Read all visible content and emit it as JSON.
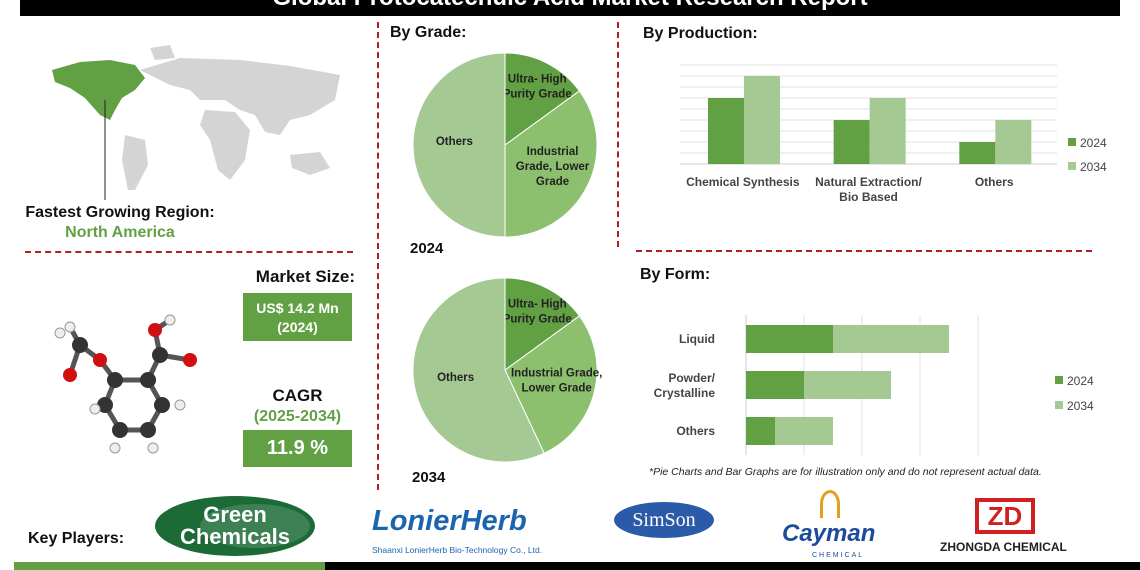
{
  "title": "Global Protocatechuic Acid Market Research Report",
  "region": {
    "label": "Fastest Growing Region:",
    "value": "North America"
  },
  "market_size": {
    "label": "Market Size:",
    "value": "US$ 14.2 Mn",
    "year": "(2024)"
  },
  "cagr": {
    "label": "CAGR",
    "period": "(2025-2034)",
    "value": "11.9 %"
  },
  "grade": {
    "heading": "By Grade:"
  },
  "production": {
    "heading": "By  Production:"
  },
  "form": {
    "heading": "By Form:"
  },
  "disclaimer": "*Pie Charts and Bar Graphs are for illustration only and do not represent actual data.",
  "key_players": {
    "label": "Key Players:",
    "logos": [
      "Green Chemicals",
      "LonierHerb",
      "Shaanxi LonierHerb Bio-Technology Co., Ltd.",
      "SimSon",
      "Cayman",
      "CHEMICAL",
      "ZHONGDA CHEMICAL"
    ]
  },
  "colors": {
    "dark_green": "#62a044",
    "light_green": "#a5c993",
    "mid_green": "#8cbf6e",
    "accent_red": "#b02020"
  },
  "chart_data": [
    {
      "type": "pie",
      "year_label": "2024",
      "slices": [
        {
          "label": "Ultra- High Purity Grade",
          "value": 15
        },
        {
          "label": "Industrial Grade, Lower Grade",
          "value": 35
        },
        {
          "label": "Others",
          "value": 50
        }
      ]
    },
    {
      "type": "pie",
      "year_label": "2034",
      "slices": [
        {
          "label": "Ultra- High Purity Grade",
          "value": 15
        },
        {
          "label": "Industrial Grade, Lower Grade",
          "value": 28
        },
        {
          "label": "Others",
          "value": 57
        }
      ]
    },
    {
      "type": "bar",
      "categories": [
        "Chemical Synthesis",
        "Natural Extraction/ Bio Based",
        "Others"
      ],
      "series": [
        {
          "name": "2024",
          "values": [
            6,
            4,
            2
          ]
        },
        {
          "name": "2034",
          "values": [
            8,
            6,
            4
          ]
        }
      ],
      "ylim": [
        0,
        9
      ],
      "grid": true,
      "legend": "right"
    },
    {
      "type": "bar",
      "orientation": "horizontal",
      "stacked": true,
      "categories": [
        "Liquid",
        "Powder/ Crystalline",
        "Others"
      ],
      "series": [
        {
          "name": "2024",
          "values": [
            1.5,
            1,
            0.5
          ]
        },
        {
          "name": "2034",
          "values": [
            2,
            1.5,
            1
          ]
        }
      ],
      "xlim": [
        0,
        4
      ],
      "grid": true,
      "legend": "right"
    }
  ]
}
